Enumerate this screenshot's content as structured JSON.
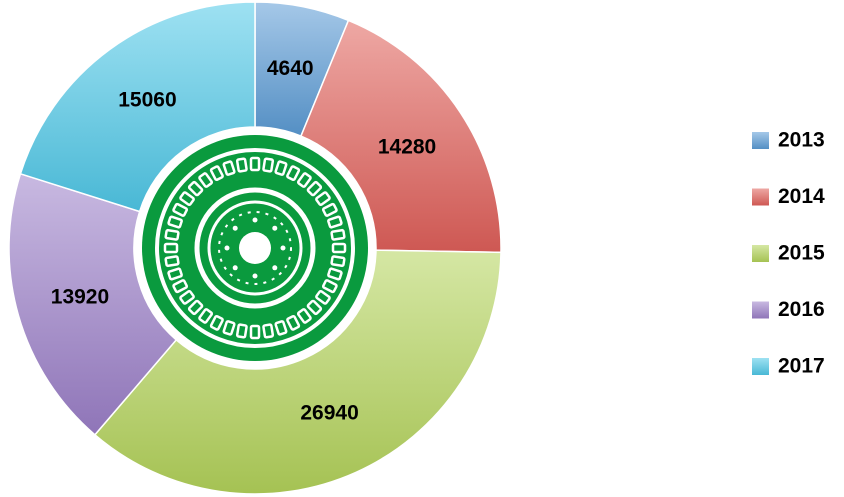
{
  "chart_data": {
    "type": "pie",
    "categories": [
      "2013",
      "2014",
      "2015",
      "2016",
      "2017"
    ],
    "values": [
      4640,
      14280,
      26940,
      13920,
      15060
    ],
    "colors": [
      "#5b9bd5",
      "#e0605a",
      "#b3d35a",
      "#9b7fc8",
      "#4fc8e8"
    ],
    "legend": "right"
  }
}
